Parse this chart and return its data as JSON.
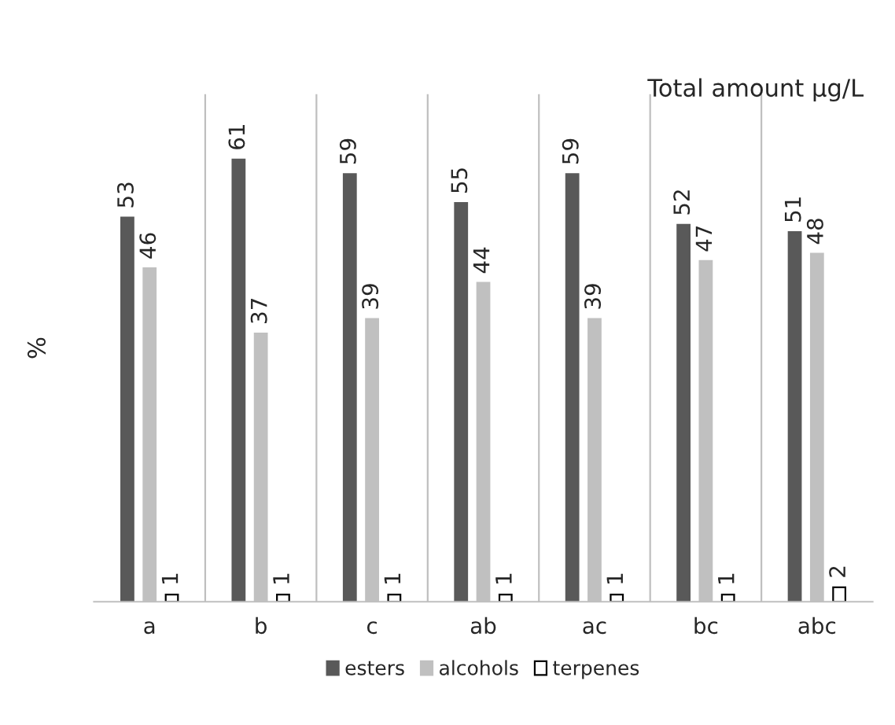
{
  "chart_data": {
    "type": "bar",
    "title": "Total amount μg/L",
    "ylabel": "%",
    "categories": [
      "a",
      "b",
      "c",
      "ab",
      "ac",
      "bc",
      "abc"
    ],
    "series": [
      {
        "name": "esters",
        "color": "#595959",
        "values": [
          53,
          61,
          59,
          55,
          59,
          52,
          51
        ]
      },
      {
        "name": "alcohols",
        "color": "#c0c0c0",
        "values": [
          46,
          37,
          39,
          44,
          39,
          47,
          48
        ]
      },
      {
        "name": "terpenes",
        "color": "#ffffff",
        "values": [
          1,
          1,
          1,
          1,
          1,
          1,
          2
        ]
      }
    ],
    "ylim": [
      0,
      70
    ],
    "tick_labels": "x",
    "data_labels": true,
    "grid": "x",
    "legend": "bottom"
  }
}
